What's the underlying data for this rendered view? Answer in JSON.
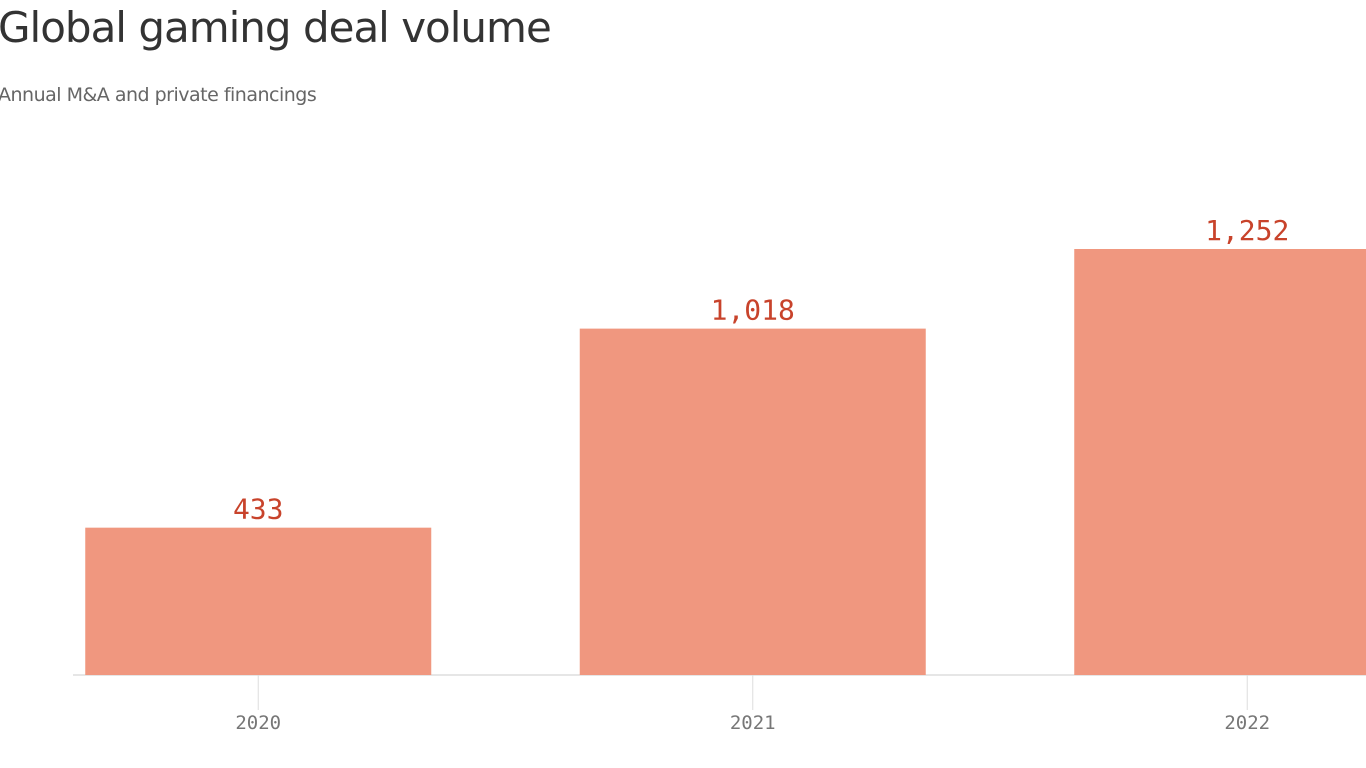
{
  "chart_data": {
    "type": "bar",
    "title": "Global gaming deal volume",
    "subtitle": "Annual M&A and private financings",
    "categories": [
      "2020",
      "2021",
      "2022"
    ],
    "values": [
      433,
      1018,
      1252
    ],
    "value_labels": [
      "433",
      "1,018",
      "1,252"
    ],
    "color": "#f0977f"
  }
}
